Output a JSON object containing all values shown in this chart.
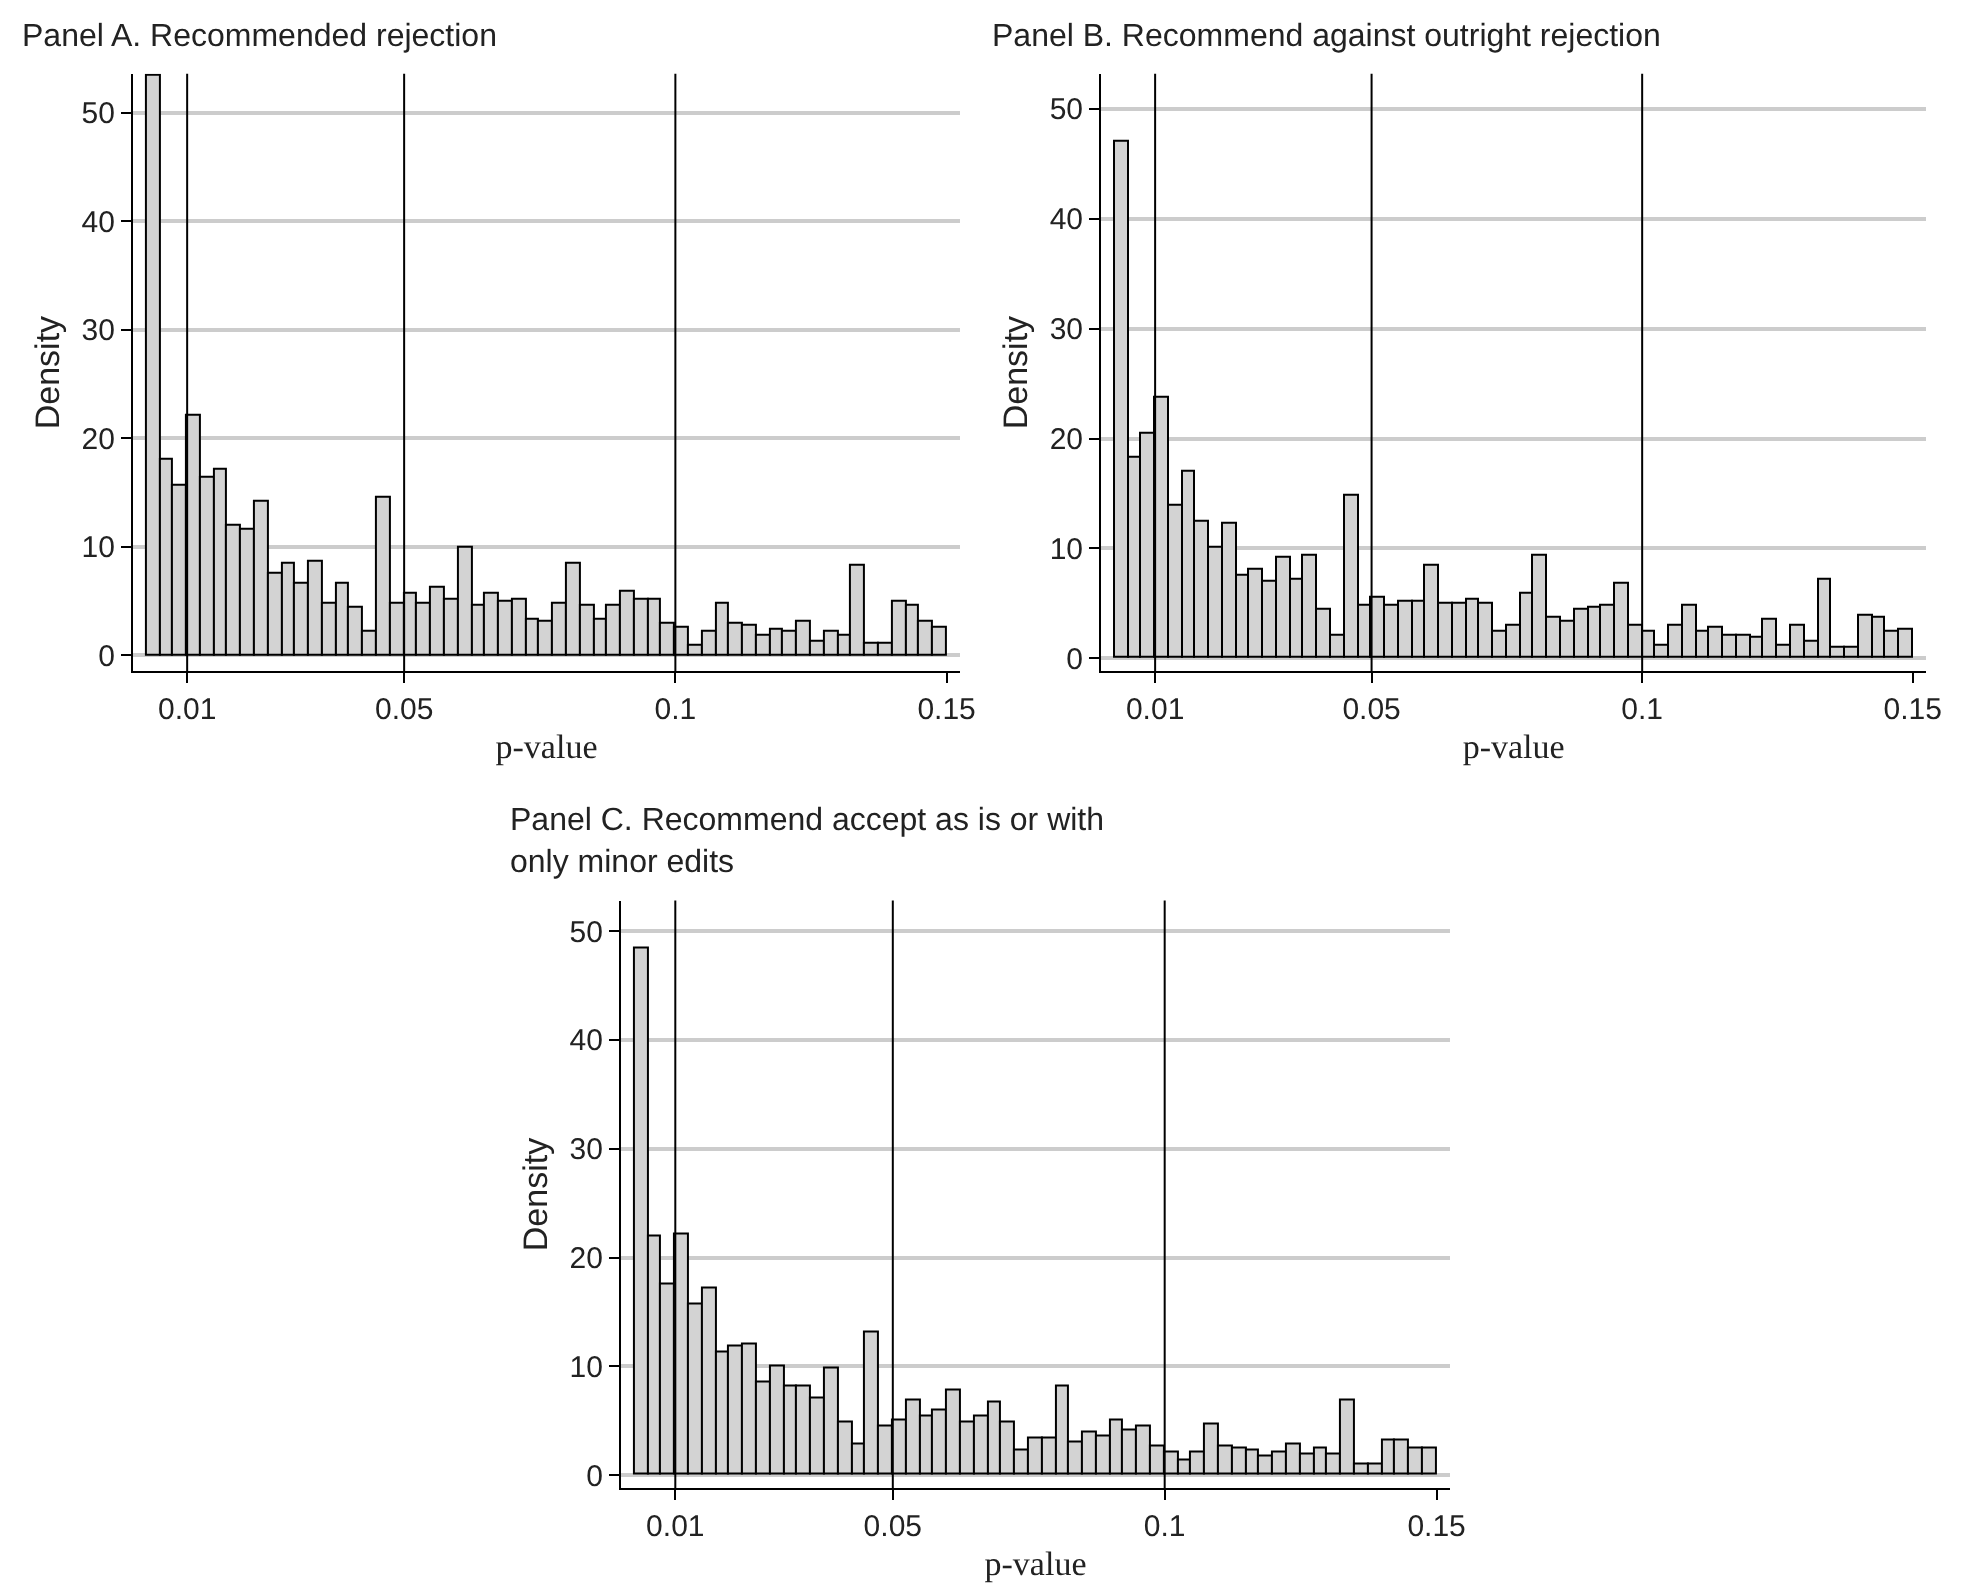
{
  "chart_data": [
    {
      "type": "histogram",
      "title": "Panel A. Recommended rejection",
      "xlabel": "p-value",
      "ylabel": "Density",
      "color": "#d3d3d3",
      "bins": [
        0.0025,
        0.005,
        0.0075,
        0.01,
        0.0125,
        0.015,
        0.0175,
        0.02,
        0.0225,
        0.025,
        0.0275,
        0.03,
        0.0325,
        0.035,
        0.0375,
        0.04,
        0.0425,
        0.045,
        0.0475,
        0.05,
        0.0525,
        0.055,
        0.0575,
        0.06,
        0.0625,
        0.065,
        0.0675,
        0.07,
        0.0725,
        0.075,
        0.0775,
        0.08,
        0.0825,
        0.085,
        0.0875,
        0.09,
        0.0925,
        0.095,
        0.0975,
        0.1,
        0.1025,
        0.105,
        0.1075,
        0.11,
        0.1125,
        0.115,
        0.1175,
        0.12,
        0.1225,
        0.125,
        0.1275,
        0.13,
        0.1325,
        0.135,
        0.1375,
        0.14,
        0.1425,
        0.145,
        0.1475,
        0.15
      ],
      "values": [
        53.5,
        18.0,
        15.6,
        22.1,
        16.3,
        17.1,
        11.9,
        11.6,
        14.2,
        7.6,
        8.4,
        6.5,
        8.7,
        4.8,
        6.6,
        4.3,
        2.2,
        14.6,
        4.8,
        5.7,
        4.8,
        6.2,
        5.1,
        9.9,
        4.6,
        5.6,
        5.0,
        5.2,
        3.2,
        3.0,
        4.8,
        8.5,
        4.5,
        3.3,
        4.5,
        5.8,
        5.2,
        5.2,
        2.9,
        2.6,
        0.9,
        2.2,
        4.8,
        2.9,
        2.7,
        1.8,
        2.4,
        2.2,
        3.0,
        1.2,
        2.2,
        1.8,
        8.2,
        1.0,
        1.0,
        4.9,
        4.5,
        3.0,
        2.6
      ],
      "xlim": [
        0,
        0.1525
      ],
      "xticks": [
        0.01,
        0.05,
        0.1,
        0.15
      ],
      "ylim": [
        -1.5,
        53.6
      ],
      "yticks": [
        0,
        10,
        20,
        30,
        40,
        50
      ],
      "grid": "y",
      "ref_lines": [
        {
          "axis": "x",
          "value": 0.01,
          "color": "#000000"
        },
        {
          "axis": "x",
          "value": 0.05,
          "color": "#000000"
        },
        {
          "axis": "x",
          "value": 0.1,
          "color": "#000000"
        }
      ]
    },
    {
      "type": "histogram",
      "title": "Panel B. Recommend against outright rejection",
      "xlabel": "p-value",
      "ylabel": "Density",
      "color": "#d3d3d3",
      "bins": [
        0.0025,
        0.005,
        0.0075,
        0.01,
        0.0125,
        0.015,
        0.0175,
        0.02,
        0.0225,
        0.025,
        0.0275,
        0.03,
        0.0325,
        0.035,
        0.0375,
        0.04,
        0.0425,
        0.045,
        0.0475,
        0.05,
        0.0525,
        0.055,
        0.0575,
        0.06,
        0.0625,
        0.065,
        0.0675,
        0.07,
        0.0725,
        0.075,
        0.0775,
        0.08,
        0.0825,
        0.085,
        0.0875,
        0.09,
        0.0925,
        0.095,
        0.0975,
        0.1,
        0.1025,
        0.105,
        0.1075,
        0.11,
        0.1125,
        0.115,
        0.1175,
        0.12,
        0.1225,
        0.125,
        0.1275,
        0.13,
        0.1325,
        0.135,
        0.1375,
        0.14,
        0.1425,
        0.145,
        0.1475,
        0.15
      ],
      "values": [
        47.0,
        18.3,
        20.4,
        23.8,
        13.8,
        17.0,
        12.5,
        10.1,
        12.3,
        7.5,
        8.1,
        7.0,
        9.2,
        7.1,
        9.3,
        4.4,
        2.0,
        14.8,
        4.8,
        5.5,
        4.7,
        5.1,
        5.1,
        8.4,
        5.0,
        5.0,
        5.4,
        5.0,
        2.4,
        3.0,
        5.8,
        9.4,
        3.7,
        3.4,
        4.4,
        4.6,
        4.8,
        6.8,
        3.0,
        2.4,
        1.1,
        2.9,
        4.7,
        2.4,
        2.7,
        2.1,
        2.1,
        1.9,
        3.6,
        1.1,
        2.9,
        1.5,
        7.2,
        0.9,
        1.0,
        3.8,
        3.7,
        2.4,
        2.6
      ],
      "xlim": [
        0,
        0.1525
      ],
      "xticks": [
        0.01,
        0.05,
        0.1,
        0.15
      ],
      "ylim": [
        -1.2,
        53.2
      ],
      "yticks": [
        0,
        10,
        20,
        30,
        40,
        50
      ],
      "grid": "y",
      "ref_lines": [
        {
          "axis": "x",
          "value": 0.01,
          "color": "#000000"
        },
        {
          "axis": "x",
          "value": 0.05,
          "color": "#000000"
        },
        {
          "axis": "x",
          "value": 0.1,
          "color": "#000000"
        }
      ]
    },
    {
      "type": "histogram",
      "title": "Panel C. Recommend accept as is or with only minor edits",
      "xlabel": "p-value",
      "ylabel": "Density",
      "color": "#d3d3d3",
      "bins": [
        0.0025,
        0.005,
        0.0075,
        0.01,
        0.0125,
        0.015,
        0.0175,
        0.02,
        0.0225,
        0.025,
        0.0275,
        0.03,
        0.0325,
        0.035,
        0.0375,
        0.04,
        0.0425,
        0.045,
        0.0475,
        0.05,
        0.0525,
        0.055,
        0.0575,
        0.06,
        0.0625,
        0.065,
        0.0675,
        0.07,
        0.0725,
        0.075,
        0.0775,
        0.08,
        0.0825,
        0.085,
        0.0875,
        0.09,
        0.0925,
        0.095,
        0.0975,
        0.1,
        0.1025,
        0.105,
        0.1075,
        0.11,
        0.1125,
        0.115,
        0.1175,
        0.12,
        0.1225,
        0.125,
        0.1275,
        0.13,
        0.1325,
        0.135,
        0.1375,
        0.14,
        0.1425,
        0.145,
        0.1475,
        0.15
      ],
      "values": [
        48.4,
        22.0,
        17.6,
        22.1,
        15.6,
        17.2,
        11.2,
        11.8,
        12.0,
        8.5,
        10.0,
        8.1,
        8.2,
        7.0,
        9.8,
        4.9,
        2.8,
        13.2,
        4.5,
        5.0,
        6.8,
        5.4,
        6.0,
        7.8,
        4.9,
        5.4,
        6.6,
        4.9,
        2.2,
        3.4,
        3.4,
        8.1,
        3.0,
        4.0,
        3.5,
        5.0,
        4.2,
        4.4,
        2.6,
        2.1,
        1.3,
        2.0,
        4.6,
        2.7,
        2.4,
        2.3,
        1.8,
        2.0,
        2.9,
        1.9,
        2.4,
        1.9,
        6.9,
        1.0,
        1.0,
        3.1,
        3.1,
        2.5,
        2.4
      ],
      "xlim": [
        0,
        0.1525
      ],
      "xticks": [
        0.01,
        0.05,
        0.1,
        0.15
      ],
      "ylim": [
        -1.2,
        52.8
      ],
      "yticks": [
        0,
        10,
        20,
        30,
        40,
        50
      ],
      "grid": "y",
      "ref_lines": [
        {
          "axis": "x",
          "value": 0.01,
          "color": "#000000"
        },
        {
          "axis": "x",
          "value": 0.05,
          "color": "#000000"
        },
        {
          "axis": "x",
          "value": 0.1,
          "color": "#000000"
        }
      ]
    }
  ]
}
